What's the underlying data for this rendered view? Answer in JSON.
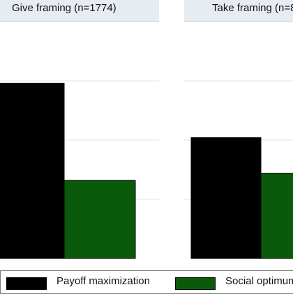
{
  "chart_data": {
    "type": "bar",
    "ylim": [
      0,
      1
    ],
    "grid": true,
    "legend_position": "bottom",
    "panels": [
      {
        "title": "Give framing (n=1774)",
        "values": [
          0.74,
          0.33
        ]
      },
      {
        "title": "Take framing (n=8",
        "values": [
          0.51,
          0.36
        ]
      }
    ],
    "series": [
      {
        "name": "Payoff maximization",
        "color": "#000000"
      },
      {
        "name": "Social optimum",
        "color": "#0b5a0b"
      }
    ]
  }
}
